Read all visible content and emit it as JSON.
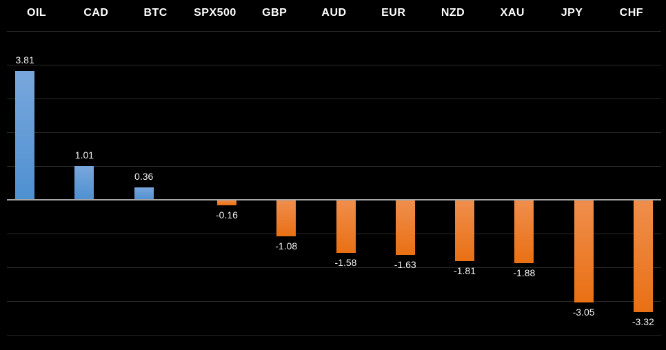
{
  "chart_data": {
    "type": "bar",
    "title": "",
    "categories": [
      "OIL",
      "CAD",
      "BTC",
      "SPX500",
      "GBP",
      "AUD",
      "EUR",
      "NZD",
      "XAU",
      "JPY",
      "CHF"
    ],
    "values": [
      3.81,
      1.01,
      0.36,
      -0.16,
      -1.08,
      -1.58,
      -1.63,
      -1.81,
      -1.88,
      -3.05,
      -3.32
    ],
    "value_labels": [
      "3.81",
      "1.01",
      "0.36",
      "-0.16",
      "-1.08",
      "-1.58",
      "-1.63",
      "-1.81",
      "-1.88",
      "-3.05",
      "-3.32"
    ],
    "ylim": [
      -4,
      5
    ],
    "grid_step": 1,
    "grid": true,
    "legend": "none",
    "category_labels_position": "top",
    "value_labels_position": "outside-end",
    "colors": {
      "background": "#000000",
      "positive_top": "#79A7DC",
      "positive_bottom": "#4E90D1",
      "negative_top": "#EF8E4D",
      "negative_bottom": "#E97014",
      "gridline": "#2B2B2B",
      "zero_line": "#A6A6A6",
      "category_label": "#FFFFFF",
      "value_label": "#F2F2F2"
    }
  }
}
